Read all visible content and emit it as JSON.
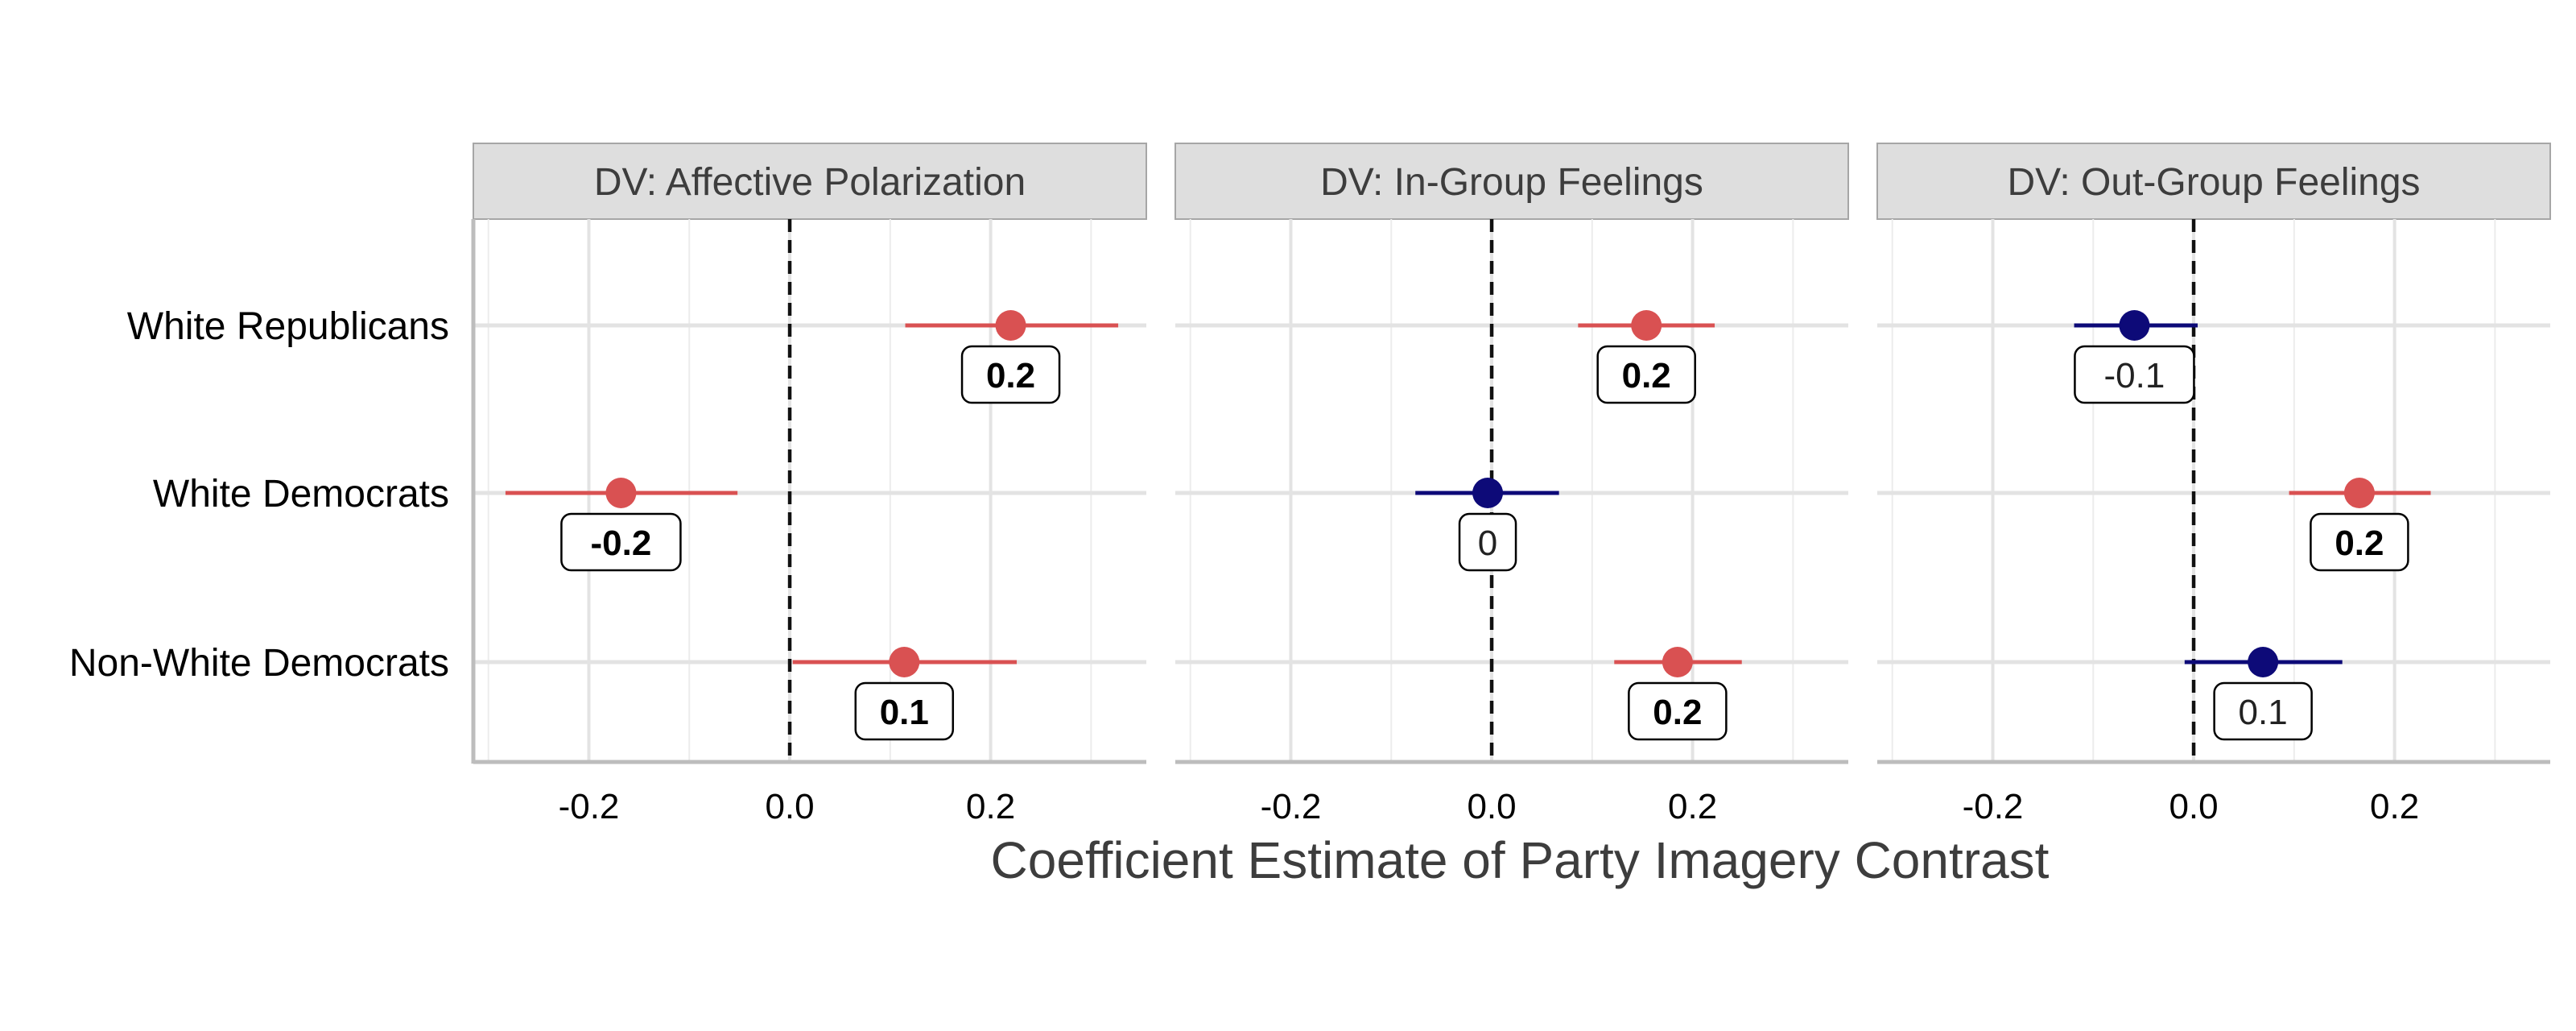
{
  "chart_data": {
    "type": "scatter",
    "subtype": "coefficient-plot-with-confidence-intervals",
    "xlabel": "Coefficient Estimate of Party Imagery Contrast",
    "ylabel": "",
    "xlim": [
      -0.315,
      0.355
    ],
    "x_ticks": [
      "-0.2",
      "0.0",
      "0.2"
    ],
    "x_tick_values": [
      -0.2,
      0.0,
      0.2
    ],
    "reference_line": 0.0,
    "categories": [
      "White Republicans",
      "White Democrats",
      "Non-White Democrats"
    ],
    "colors": {
      "significant": "#d95152",
      "not_significant": "#0d0a78"
    },
    "grid": true,
    "legend": "none",
    "panels": [
      {
        "title": "DV: Affective Polarization",
        "points": [
          {
            "group": "White Republicans",
            "estimate": 0.22,
            "low": 0.115,
            "high": 0.327,
            "label": "0.2",
            "significant": true
          },
          {
            "group": "White Democrats",
            "estimate": -0.168,
            "low": -0.283,
            "high": -0.052,
            "label": "-0.2",
            "significant": true
          },
          {
            "group": "Non-White Democrats",
            "estimate": 0.114,
            "low": 0.003,
            "high": 0.226,
            "label": "0.1",
            "significant": true
          }
        ]
      },
      {
        "title": "DV: In-Group Feelings",
        "points": [
          {
            "group": "White Republicans",
            "estimate": 0.154,
            "low": 0.086,
            "high": 0.222,
            "label": "0.2",
            "significant": true
          },
          {
            "group": "White Democrats",
            "estimate": -0.004,
            "low": -0.076,
            "high": 0.067,
            "label": "0",
            "significant": false
          },
          {
            "group": "Non-White Democrats",
            "estimate": 0.185,
            "low": 0.122,
            "high": 0.249,
            "label": "0.2",
            "significant": true
          }
        ]
      },
      {
        "title": "DV: Out-Group Feelings",
        "points": [
          {
            "group": "White Republicans",
            "estimate": -0.059,
            "low": -0.119,
            "high": 0.004,
            "label": "-0.1",
            "significant": false
          },
          {
            "group": "White Democrats",
            "estimate": 0.165,
            "low": 0.095,
            "high": 0.236,
            "label": "0.2",
            "significant": true
          },
          {
            "group": "Non-White Democrats",
            "estimate": 0.069,
            "low": -0.009,
            "high": 0.148,
            "label": "0.1",
            "significant": false
          }
        ]
      }
    ]
  }
}
